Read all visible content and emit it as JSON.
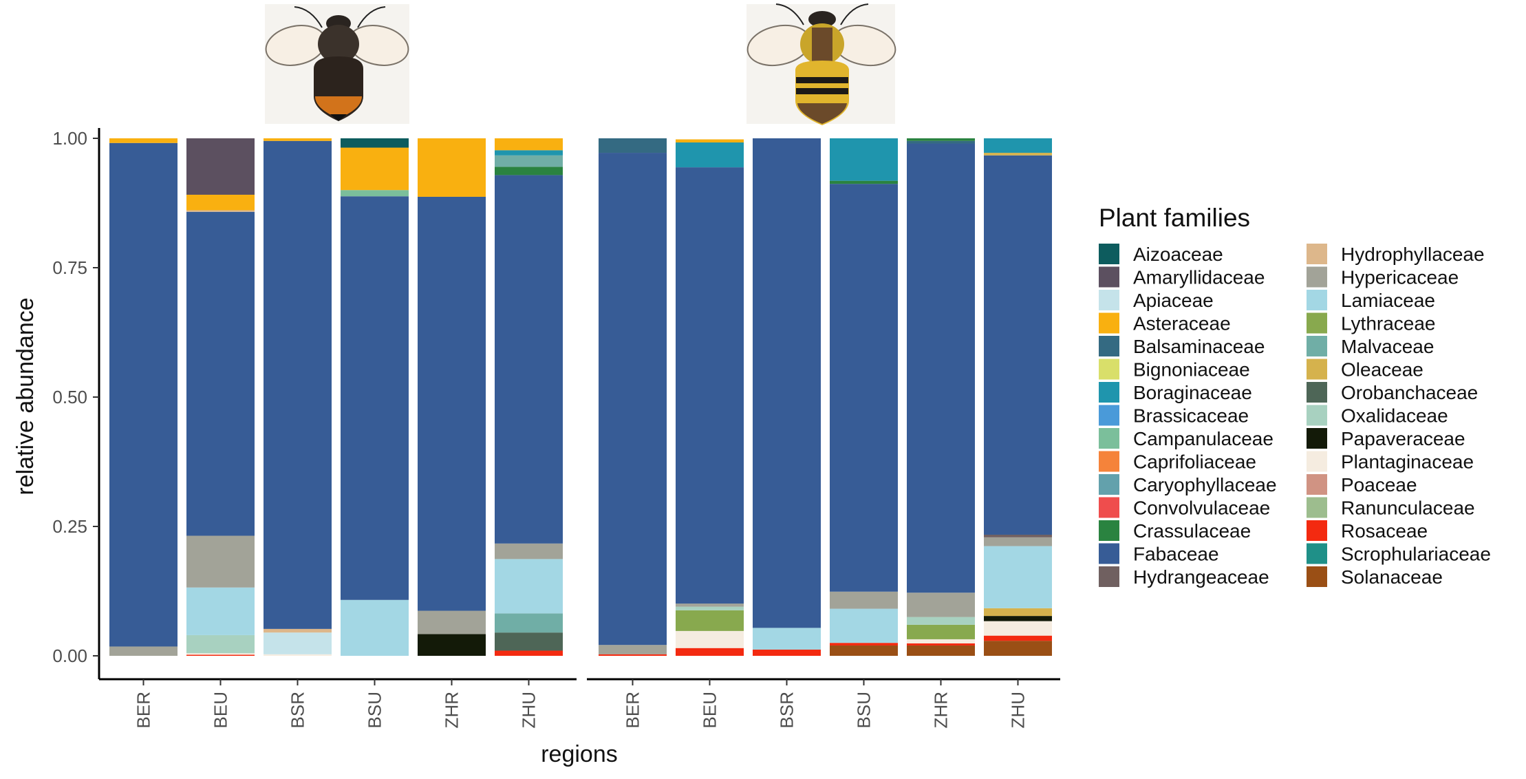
{
  "chart_data": {
    "type": "bar",
    "stacked": true,
    "xlabel": "regions",
    "ylabel": "relative abundance",
    "ylim": [
      0,
      1
    ],
    "yticks": [
      "0.00",
      "0.25",
      "0.50",
      "0.75",
      "1.00"
    ],
    "categories": [
      "BER",
      "BEU",
      "BSR",
      "BSU",
      "ZHR",
      "ZHU"
    ],
    "legend_title": "Plant families",
    "legend_position": "right",
    "families": [
      {
        "name": "Aizoaceae",
        "color": "#0d5c5e"
      },
      {
        "name": "Amaryllidaceae",
        "color": "#5c5060"
      },
      {
        "name": "Apiaceae",
        "color": "#c5e3ea"
      },
      {
        "name": "Asteraceae",
        "color": "#f9b010"
      },
      {
        "name": "Balsaminaceae",
        "color": "#346a82"
      },
      {
        "name": "Bignoniaceae",
        "color": "#d9df6a"
      },
      {
        "name": "Boraginaceae",
        "color": "#1f95ad"
      },
      {
        "name": "Brassicaceae",
        "color": "#4a9ad9"
      },
      {
        "name": "Campanulaceae",
        "color": "#7bbf9b"
      },
      {
        "name": "Caprifoliaceae",
        "color": "#f5833a"
      },
      {
        "name": "Caryophyllaceae",
        "color": "#63a1ac"
      },
      {
        "name": "Convolvulaceae",
        "color": "#ef4d4d"
      },
      {
        "name": "Crassulaceae",
        "color": "#2a8340"
      },
      {
        "name": "Fabaceae",
        "color": "#375c96"
      },
      {
        "name": "Hydrangeaceae",
        "color": "#706060"
      },
      {
        "name": "Hydrophyllaceae",
        "color": "#ddb78b"
      },
      {
        "name": "Hypericaceae",
        "color": "#a2a398"
      },
      {
        "name": "Lamiaceae",
        "color": "#a3d7e4"
      },
      {
        "name": "Lythraceae",
        "color": "#88a94e"
      },
      {
        "name": "Malvaceae",
        "color": "#70aea6"
      },
      {
        "name": "Oleaceae",
        "color": "#d5b24d"
      },
      {
        "name": "Orobanchaceae",
        "color": "#4e6657"
      },
      {
        "name": "Oxalidaceae",
        "color": "#a8d1c0"
      },
      {
        "name": "Papaveraceae",
        "color": "#131a08"
      },
      {
        "name": "Plantaginaceae",
        "color": "#f5ece0"
      },
      {
        "name": "Poaceae",
        "color": "#d09383"
      },
      {
        "name": "Ranunculaceae",
        "color": "#9dbd8e"
      },
      {
        "name": "Rosaceae",
        "color": "#f32a10"
      },
      {
        "name": "Scrophulariaceae",
        "color": "#1f9088"
      },
      {
        "name": "Solanaceae",
        "color": "#9a4f15"
      }
    ],
    "panels": [
      {
        "icon": "dark-bumblebee-icon",
        "bars": [
          {
            "category": "BER",
            "stack": [
              [
                "Hypericaceae",
                0.018
              ],
              [
                "Fabaceae",
                0.973
              ],
              [
                "Asteraceae",
                0.009
              ]
            ]
          },
          {
            "category": "BEU",
            "stack": [
              [
                "Rosaceae",
                0.002
              ],
              [
                "Plantaginaceae",
                0.003
              ],
              [
                "Oxalidaceae",
                0.035
              ],
              [
                "Lamiaceae",
                0.092
              ],
              [
                "Hypericaceae",
                0.1
              ],
              [
                "Fabaceae",
                0.626
              ],
              [
                "Hydrophyllaceae",
                0.003
              ],
              [
                "Asteraceae",
                0.03
              ],
              [
                "Amaryllidaceae",
                0.109
              ]
            ]
          },
          {
            "category": "BSR",
            "stack": [
              [
                "Plantaginaceae",
                0.003
              ],
              [
                "Apiaceae",
                0.042
              ],
              [
                "Hydrophyllaceae",
                0.007
              ],
              [
                "Fabaceae",
                0.943
              ],
              [
                "Asteraceae",
                0.005
              ]
            ]
          },
          {
            "category": "BSU",
            "stack": [
              [
                "Lamiaceae",
                0.108
              ],
              [
                "Fabaceae",
                0.78
              ],
              [
                "Campanulaceae",
                0.012
              ],
              [
                "Asteraceae",
                0.082
              ],
              [
                "Aizoaceae",
                0.018
              ]
            ]
          },
          {
            "category": "ZHR",
            "stack": [
              [
                "Papaveraceae",
                0.042
              ],
              [
                "Hypericaceae",
                0.045
              ],
              [
                "Fabaceae",
                0.8
              ],
              [
                "Asteraceae",
                0.113
              ]
            ]
          },
          {
            "category": "ZHU",
            "stack": [
              [
                "Rosaceae",
                0.01
              ],
              [
                "Orobanchaceae",
                0.035
              ],
              [
                "Malvaceae",
                0.037
              ],
              [
                "Lamiaceae",
                0.105
              ],
              [
                "Hypericaceae",
                0.03
              ],
              [
                "Fabaceae",
                0.712
              ],
              [
                "Crassulaceae",
                0.016
              ],
              [
                "Malvaceae",
                0.022
              ],
              [
                "Boraginaceae",
                0.01
              ],
              [
                "Asteraceae",
                0.023
              ]
            ]
          }
        ]
      },
      {
        "icon": "yellow-bumblebee-icon",
        "bars": [
          {
            "category": "BER",
            "stack": [
              [
                "Rosaceae",
                0.003
              ],
              [
                "Hypericaceae",
                0.018
              ],
              [
                "Fabaceae",
                0.951
              ],
              [
                "Balsaminaceae",
                0.028
              ]
            ]
          },
          {
            "category": "BEU",
            "stack": [
              [
                "Rosaceae",
                0.015
              ],
              [
                "Plantaginaceae",
                0.033
              ],
              [
                "Lythraceae",
                0.04
              ],
              [
                "Oxalidaceae",
                0.007
              ],
              [
                "Hypericaceae",
                0.006
              ],
              [
                "Fabaceae",
                0.843
              ],
              [
                "Boraginaceae",
                0.048
              ],
              [
                "Asteraceae",
                0.006
              ]
            ]
          },
          {
            "category": "BSR",
            "stack": [
              [
                "Rosaceae",
                0.012
              ],
              [
                "Lamiaceae",
                0.042
              ],
              [
                "Fabaceae",
                0.946
              ]
            ]
          },
          {
            "category": "BSU",
            "stack": [
              [
                "Solanaceae",
                0.02
              ],
              [
                "Rosaceae",
                0.005
              ],
              [
                "Lamiaceae",
                0.066
              ],
              [
                "Hypericaceae",
                0.033
              ],
              [
                "Fabaceae",
                0.788
              ],
              [
                "Crassulaceae",
                0.006
              ],
              [
                "Boraginaceae",
                0.082
              ]
            ]
          },
          {
            "category": "ZHR",
            "stack": [
              [
                "Solanaceae",
                0.02
              ],
              [
                "Rosaceae",
                0.004
              ],
              [
                "Plantaginaceae",
                0.008
              ],
              [
                "Lythraceae",
                0.028
              ],
              [
                "Oxalidaceae",
                0.015
              ],
              [
                "Hypericaceae",
                0.047
              ],
              [
                "Fabaceae",
                0.868
              ],
              [
                "Balsaminaceae",
                0.005
              ],
              [
                "Crassulaceae",
                0.005
              ]
            ]
          },
          {
            "category": "ZHU",
            "stack": [
              [
                "Solanaceae",
                0.029
              ],
              [
                "Rosaceae",
                0.01
              ],
              [
                "Plantaginaceae",
                0.028
              ],
              [
                "Papaveraceae",
                0.01
              ],
              [
                "Oleaceae",
                0.015
              ],
              [
                "Lamiaceae",
                0.12
              ],
              [
                "Hypericaceae",
                0.017
              ],
              [
                "Hydrangeaceae",
                0.005
              ],
              [
                "Fabaceae",
                0.733
              ],
              [
                "Oleaceae",
                0.005
              ],
              [
                "Boraginaceae",
                0.028
              ]
            ]
          }
        ]
      }
    ]
  }
}
